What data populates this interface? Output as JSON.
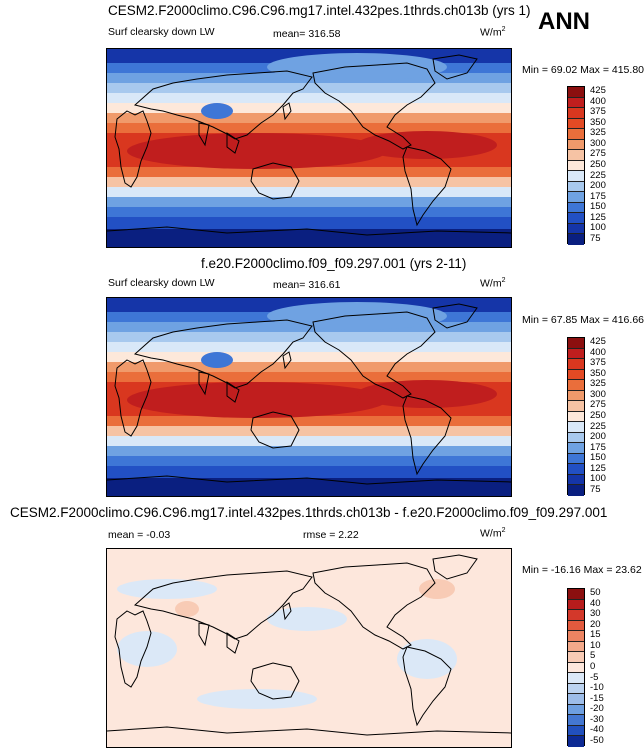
{
  "season": "ANN",
  "chart_data": [
    {
      "type": "heatmap",
      "title": "CESM2.F2000climo.C96.C96.mg17.intel.432pes.1thrds.ch013b (yrs 1)",
      "field": "Surf clearsky down LW",
      "mean_label": "mean= 316.58",
      "units": "W/m",
      "units_sup": "2",
      "minmax": "Min = 69.02 Max = 415.80",
      "min": 69.02,
      "max": 415.8,
      "mean": 316.58,
      "levels": [
        "425",
        "400",
        "375",
        "350",
        "325",
        "300",
        "275",
        "250",
        "225",
        "200",
        "175",
        "150",
        "125",
        "100",
        "75"
      ],
      "colors": [
        "#8b0f0f",
        "#c01e1e",
        "#d9371f",
        "#e34a24",
        "#ea6e3b",
        "#f09a6b",
        "#f6c3a4",
        "#fde8da",
        "#d9e8f8",
        "#a8c9ee",
        "#6fa2e2",
        "#3e76d6",
        "#2250c4",
        "#1535a8",
        "#0a1f80"
      ]
    },
    {
      "type": "heatmap",
      "title": "f.e20.F2000climo.f09_f09.297.001 (yrs 2-11)",
      "field": "Surf clearsky down LW",
      "mean_label": "mean= 316.61",
      "units": "W/m",
      "units_sup": "2",
      "minmax": "Min = 67.85 Max = 416.66",
      "min": 67.85,
      "max": 416.66,
      "mean": 316.61,
      "levels": [
        "425",
        "400",
        "375",
        "350",
        "325",
        "300",
        "275",
        "250",
        "225",
        "200",
        "175",
        "150",
        "125",
        "100",
        "75"
      ],
      "colors": [
        "#8b0f0f",
        "#c01e1e",
        "#d9371f",
        "#e34a24",
        "#ea6e3b",
        "#f09a6b",
        "#f6c3a4",
        "#fde8da",
        "#d9e8f8",
        "#a8c9ee",
        "#6fa2e2",
        "#3e76d6",
        "#2250c4",
        "#1535a8",
        "#0a1f80"
      ]
    },
    {
      "type": "heatmap",
      "title": "CESM2.F2000climo.C96.C96.mg17.intel.432pes.1thrds.ch013b - f.e20.F2000climo.f09_f09.297.001",
      "mean_label": "mean =  -0.03",
      "rmse_label": "rmse =   2.22",
      "units": "W/m",
      "units_sup": "2",
      "minmax": "Min = -16.16 Max = 23.62",
      "min": -16.16,
      "max": 23.62,
      "mean": -0.03,
      "rmse": 2.22,
      "levels": [
        "50",
        "40",
        "30",
        "20",
        "15",
        "10",
        "5",
        "0",
        "-5",
        "-10",
        "-15",
        "-20",
        "-30",
        "-40",
        "-50"
      ],
      "colors": [
        "#8b0f0f",
        "#b71c1c",
        "#d3382a",
        "#e25a3e",
        "#ec8462",
        "#f3a98a",
        "#f8cbb5",
        "#fde7dc",
        "#dbe8f7",
        "#bcd3f0",
        "#9dbde9",
        "#6e9fe0",
        "#4477d1",
        "#2250bd",
        "#0d2a94"
      ]
    }
  ]
}
